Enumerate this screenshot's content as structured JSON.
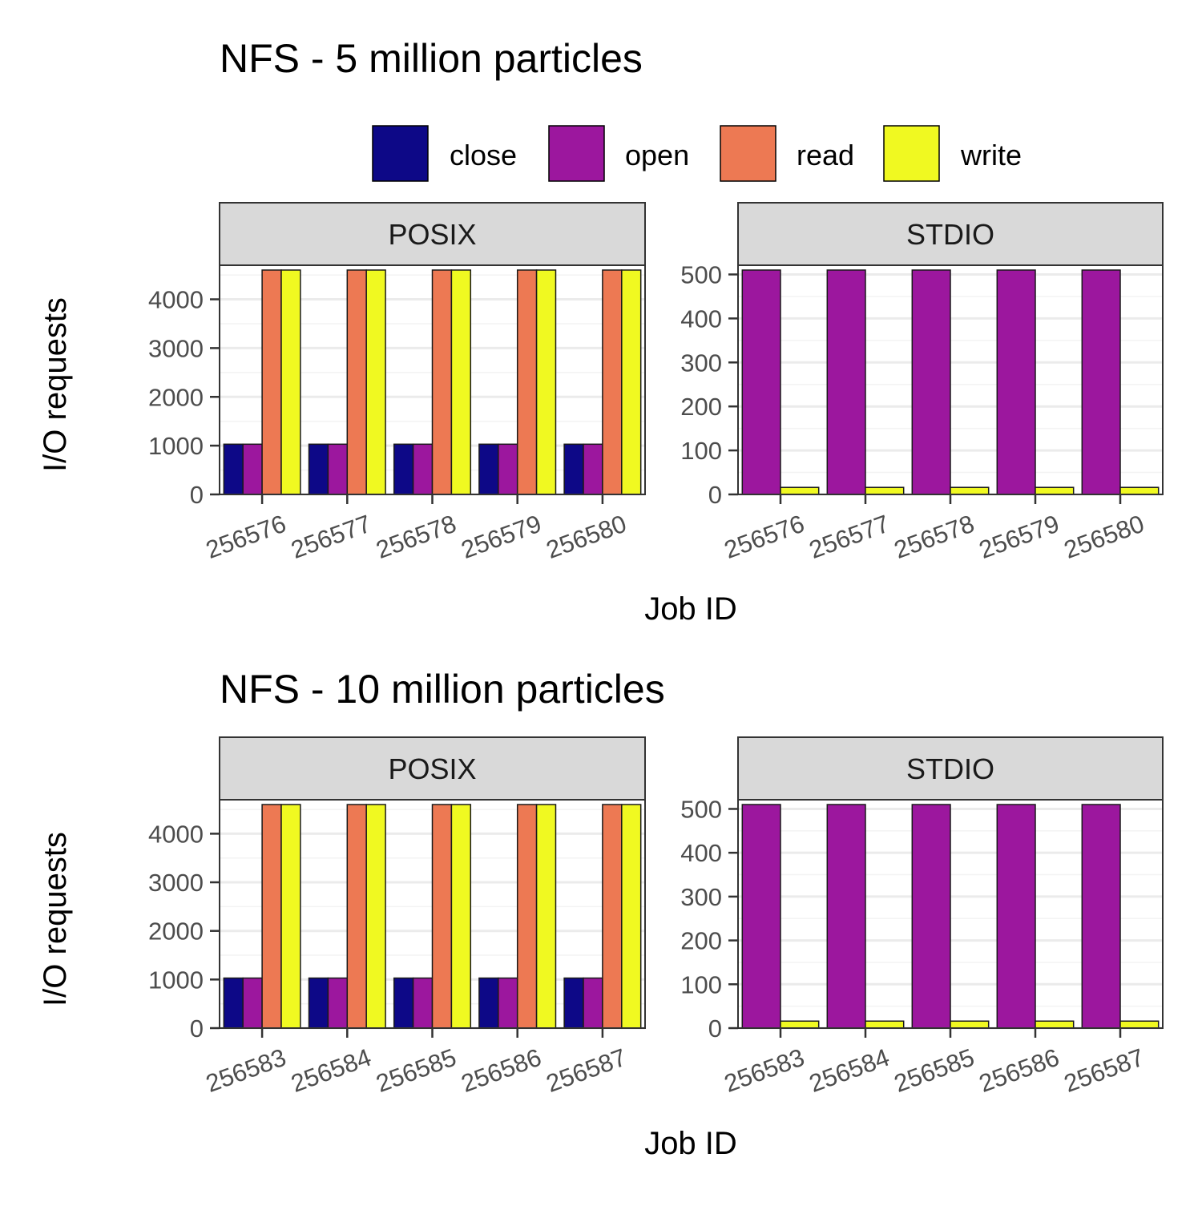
{
  "legend": {
    "items": [
      {
        "name": "close",
        "color": "#0d0887"
      },
      {
        "name": "open",
        "color": "#9c179e"
      },
      {
        "name": "read",
        "color": "#ed7953"
      },
      {
        "name": "write",
        "color": "#f0f921"
      }
    ]
  },
  "chart_data": [
    {
      "type": "bar",
      "title": "NFS - 5 million particles",
      "xlabel": "Job ID",
      "ylabel": "I/O requests",
      "legend_position": "top",
      "panels": [
        {
          "strip": "POSIX",
          "categories": [
            "256576",
            "256577",
            "256578",
            "256579",
            "256580"
          ],
          "ylim": [
            0,
            4600
          ],
          "yticks": [
            0,
            1000,
            2000,
            3000,
            4000
          ],
          "series": [
            {
              "name": "close",
              "values": [
                1030,
                1030,
                1030,
                1030,
                1030
              ]
            },
            {
              "name": "open",
              "values": [
                1030,
                1030,
                1030,
                1030,
                1030
              ]
            },
            {
              "name": "read",
              "values": [
                4600,
                4600,
                4600,
                4600,
                4600
              ]
            },
            {
              "name": "write",
              "values": [
                4600,
                4600,
                4600,
                4600,
                4600
              ]
            }
          ]
        },
        {
          "strip": "STDIO",
          "categories": [
            "256576",
            "256577",
            "256578",
            "256579",
            "256580"
          ],
          "ylim": [
            0,
            510
          ],
          "yticks": [
            0,
            100,
            200,
            300,
            400,
            500
          ],
          "series": [
            {
              "name": "open",
              "values": [
                510,
                510,
                510,
                510,
                510
              ]
            },
            {
              "name": "write",
              "values": [
                16,
                16,
                16,
                16,
                16
              ]
            }
          ]
        }
      ]
    },
    {
      "type": "bar",
      "title": "NFS - 10 million particles",
      "xlabel": "Job ID",
      "ylabel": "I/O requests",
      "panels": [
        {
          "strip": "POSIX",
          "categories": [
            "256583",
            "256584",
            "256585",
            "256586",
            "256587"
          ],
          "ylim": [
            0,
            4600
          ],
          "yticks": [
            0,
            1000,
            2000,
            3000,
            4000
          ],
          "series": [
            {
              "name": "close",
              "values": [
                1030,
                1030,
                1030,
                1030,
                1030
              ]
            },
            {
              "name": "open",
              "values": [
                1030,
                1030,
                1030,
                1030,
                1030
              ]
            },
            {
              "name": "read",
              "values": [
                4600,
                4600,
                4600,
                4600,
                4600
              ]
            },
            {
              "name": "write",
              "values": [
                4600,
                4600,
                4600,
                4600,
                4600
              ]
            }
          ]
        },
        {
          "strip": "STDIO",
          "categories": [
            "256583",
            "256584",
            "256585",
            "256586",
            "256587"
          ],
          "ylim": [
            0,
            510
          ],
          "yticks": [
            0,
            100,
            200,
            300,
            400,
            500
          ],
          "series": [
            {
              "name": "open",
              "values": [
                510,
                510,
                510,
                510,
                510
              ]
            },
            {
              "name": "write",
              "values": [
                16,
                16,
                16,
                16,
                16
              ]
            }
          ]
        }
      ]
    }
  ]
}
